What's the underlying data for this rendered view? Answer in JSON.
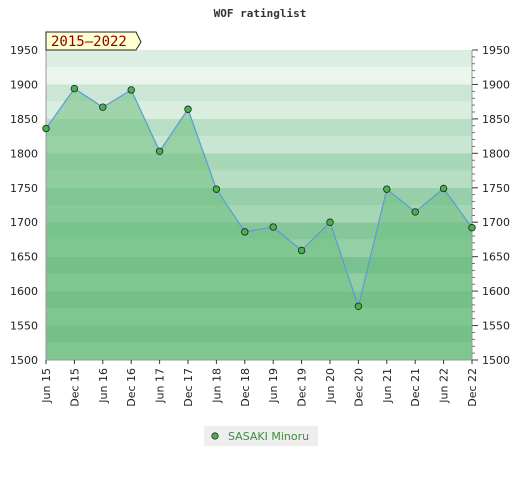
{
  "chart_data": {
    "type": "area",
    "title": "WOF ratinglist",
    "period_label": "2015–2022",
    "categories": [
      "Jun 15",
      "Dec 15",
      "Jun 16",
      "Dec 16",
      "Jun 17",
      "Dec 17",
      "Jun 18",
      "Dec 18",
      "Jun 19",
      "Dec 19",
      "Jun 20",
      "Dec 20",
      "Jun 21",
      "Dec 21",
      "Jun 22",
      "Dec 22"
    ],
    "series": [
      {
        "name": "SASAKI Minoru",
        "values": [
          1836,
          1894,
          1867,
          1892,
          1803,
          1864,
          1748,
          1686,
          1693,
          1659,
          1700,
          1578,
          1748,
          1715,
          1749,
          1692
        ]
      }
    ],
    "yticks": [
      1500,
      1550,
      1600,
      1650,
      1700,
      1750,
      1800,
      1850,
      1900,
      1950
    ],
    "ylim": [
      1500,
      1950
    ],
    "legend": "bottom-center",
    "grid": true,
    "colors": {
      "line": "#5b9bd5",
      "marker": "#4caf50",
      "area": "#6fc080",
      "band_light": "#f0f8f2",
      "band_mid": "#dcefe2"
    }
  }
}
